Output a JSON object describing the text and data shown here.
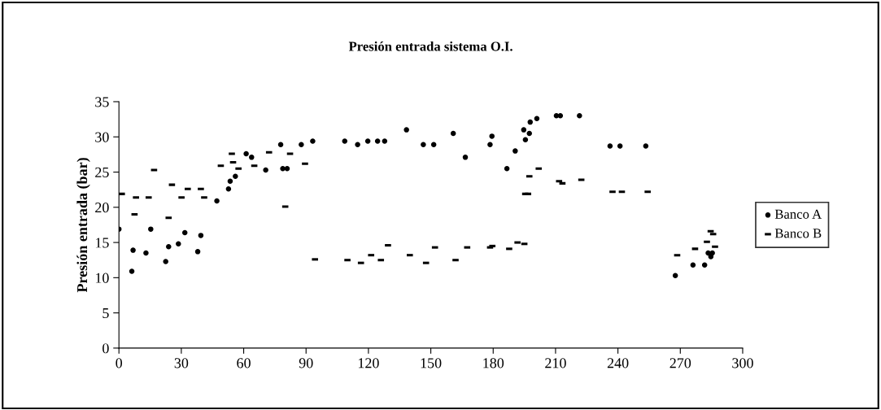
{
  "chart_data": {
    "type": "scatter",
    "title": "Presión entrada sistema O.I.",
    "ylabel": "Presión entrada (bar)",
    "xlim": [
      0,
      300
    ],
    "xticks": [
      0,
      30,
      60,
      90,
      120,
      150,
      180,
      210,
      240,
      270,
      300
    ],
    "ylim": [
      0,
      35
    ],
    "yticks": [
      0,
      5,
      10,
      15,
      20,
      25,
      30,
      35
    ],
    "grid": false,
    "legend": "right",
    "series": [
      {
        "name": "Banco A",
        "color": "#000000",
        "marker": "circle",
        "x": [
          0,
          6.2,
          6.8,
          13,
          15.3,
          22.5,
          23.9,
          28.6,
          31.7,
          37.9,
          39.4,
          47.1,
          52.7,
          53.5,
          56,
          61.2,
          63.8,
          70.6,
          77.8,
          78.8,
          80.9,
          87.7,
          93.2,
          108.6,
          114.8,
          119.7,
          124.4,
          127.8,
          138.3,
          146.4,
          151.4,
          160.8,
          166.6,
          178.5,
          179.4,
          186.6,
          190.6,
          194.7,
          195.5,
          197.4,
          197.8,
          201,
          210.4,
          212.3,
          221.5,
          236.2,
          241,
          253.4,
          267.6,
          276.1,
          281.7,
          283.4,
          284.7,
          285.4
        ],
        "values": [
          16.9,
          10.9,
          13.9,
          13.5,
          16.9,
          12.3,
          14.4,
          14.8,
          16.4,
          13.7,
          16,
          20.9,
          22.6,
          23.7,
          24.4,
          27.6,
          27.1,
          25.3,
          28.9,
          25.5,
          25.5,
          28.9,
          29.4,
          29.4,
          28.9,
          29.4,
          29.4,
          29.4,
          31,
          28.9,
          28.9,
          30.5,
          27.1,
          28.9,
          30.1,
          25.5,
          28,
          31,
          29.6,
          30.5,
          32.1,
          32.6,
          33,
          33,
          33,
          28.7,
          28.7,
          28.7,
          10.3,
          11.8,
          11.8,
          13.5,
          13,
          13.5
        ]
      },
      {
        "name": "Banco B",
        "color": "#000000",
        "x": [
          1.4,
          7.5,
          8.2,
          14.3,
          16.9,
          23.9,
          25.5,
          30.1,
          33.1,
          39.4,
          41,
          49,
          54.3,
          54.9,
          57.5,
          65.1,
          72.2,
          80,
          82.3,
          89.5,
          94.3,
          109.9,
          116.4,
          121.3,
          126,
          129.4,
          139.9,
          147.7,
          152,
          161.9,
          167.5,
          178.5,
          179.6,
          187.7,
          191.7,
          195,
          195.4,
          196.8,
          197.4,
          201.9,
          211.7,
          213.3,
          222.4,
          237.4,
          241.9,
          254.3,
          268.5,
          277.1,
          282.8,
          284.6,
          285.8,
          286.7
        ],
        "values": [
          21.9,
          19,
          21.4,
          21.4,
          25.3,
          18.5,
          23.2,
          21.4,
          22.6,
          22.6,
          21.4,
          25.9,
          27.6,
          26.4,
          25.5,
          25.9,
          27.8,
          20.1,
          27.6,
          26.2,
          12.6,
          12.5,
          12.1,
          13.2,
          12.5,
          14.6,
          13.2,
          12.1,
          14.3,
          12.5,
          14.3,
          14.3,
          14.5,
          14.1,
          15,
          14.8,
          21.9,
          21.9,
          24.4,
          25.5,
          23.7,
          23.4,
          23.9,
          22.2,
          22.2,
          22.2,
          13.2,
          14.1,
          15.1,
          16.6,
          16.2,
          14.4
        ]
      }
    ]
  }
}
